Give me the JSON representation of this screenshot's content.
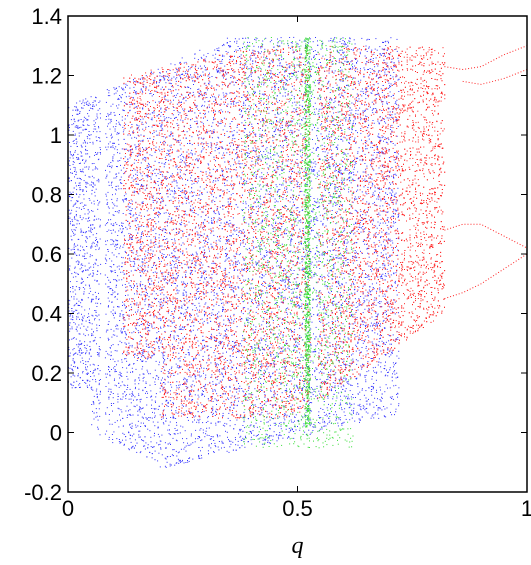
{
  "chart_data": {
    "type": "scatter",
    "title": "",
    "xlabel": "q",
    "ylabel": "",
    "xlim": [
      0,
      1
    ],
    "ylim": [
      -0.2,
      1.4
    ],
    "x_ticks": [
      0,
      0.5,
      1
    ],
    "x_tick_labels": [
      "0",
      "0.5",
      "1"
    ],
    "y_ticks": [
      -0.2,
      0,
      0.2,
      0.4,
      0.6,
      0.8,
      1,
      1.2,
      1.4
    ],
    "y_tick_labels": [
      "-0.2",
      "0",
      "0.2",
      "0.4",
      "0.6",
      "0.8",
      "1",
      "1.2",
      "1.4"
    ],
    "grid": false,
    "legend": null,
    "series": [
      {
        "color": "#3333ff",
        "description_points": [
          [
            0.0,
            1.1
          ],
          [
            0.0,
            0.2
          ],
          [
            0.05,
            1.22
          ],
          [
            0.05,
            0.05
          ],
          [
            0.1,
            1.24
          ],
          [
            0.1,
            -0.02
          ],
          [
            0.15,
            1.27
          ],
          [
            0.15,
            -0.05
          ],
          [
            0.2,
            1.3
          ],
          [
            0.2,
            -0.12
          ],
          [
            0.25,
            1.31
          ],
          [
            0.3,
            1.33
          ],
          [
            0.35,
            1.33
          ],
          [
            0.4,
            1.33
          ],
          [
            0.5,
            1.33
          ],
          [
            0.6,
            1.32
          ]
        ]
      },
      {
        "color": "#ff2222",
        "description_points": [
          [
            0.12,
            1.2
          ],
          [
            0.12,
            0.2
          ],
          [
            0.2,
            1.25
          ],
          [
            0.2,
            0.1
          ],
          [
            0.3,
            1.28
          ],
          [
            0.3,
            0.05
          ],
          [
            0.4,
            1.3
          ],
          [
            0.4,
            0.05
          ],
          [
            0.5,
            1.3
          ],
          [
            0.5,
            0.1
          ],
          [
            0.6,
            1.3
          ],
          [
            0.6,
            0.3
          ],
          [
            0.7,
            1.29
          ],
          [
            0.7,
            0.35
          ],
          [
            0.8,
            1.27
          ],
          [
            0.8,
            0.4
          ]
        ]
      },
      {
        "color": "#33dd33",
        "description_points": [
          [
            0.4,
            0.02
          ],
          [
            0.45,
            -0.05
          ],
          [
            0.5,
            -0.02
          ],
          [
            0.52,
            1.33
          ],
          [
            0.54,
            0.5
          ],
          [
            0.55,
            0.02
          ]
        ]
      }
    ],
    "bifurcation_tail": {
      "color": "#ff2222",
      "upper_branches": [
        [
          0.82,
          1.23
        ],
        [
          0.86,
          1.22
        ],
        [
          0.9,
          1.23
        ],
        [
          0.95,
          1.27
        ],
        [
          1.0,
          1.3
        ]
      ],
      "upper_low_branches": [
        [
          0.86,
          1.18
        ],
        [
          0.9,
          1.17
        ],
        [
          0.95,
          1.19
        ],
        [
          1.0,
          1.22
        ]
      ],
      "lower_branches": [
        [
          0.82,
          0.68
        ],
        [
          0.86,
          0.7
        ],
        [
          0.9,
          0.7
        ],
        [
          0.95,
          0.66
        ],
        [
          1.0,
          0.62
        ]
      ],
      "lower_low_branches": [
        [
          0.82,
          0.45
        ],
        [
          0.86,
          0.47
        ],
        [
          0.9,
          0.5
        ],
        [
          0.95,
          0.55
        ],
        [
          1.0,
          0.6
        ]
      ]
    }
  }
}
